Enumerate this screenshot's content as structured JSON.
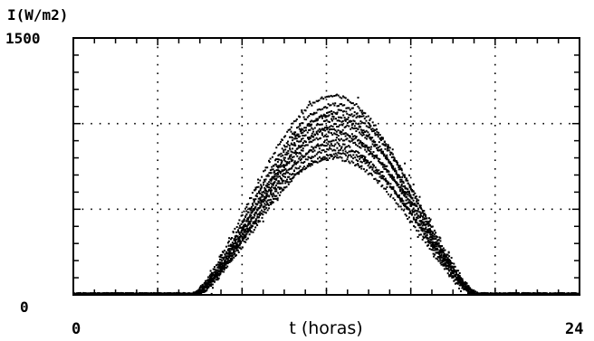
{
  "chart_data": {
    "type": "scatter",
    "title": "",
    "ylabel": "I(W/m2)",
    "xlabel": "t (horas)",
    "xlim": [
      0,
      24
    ],
    "ylim": [
      0,
      1500
    ],
    "x_tick_labels": [
      "0",
      "24"
    ],
    "y_tick_labels": [
      "1500",
      "0"
    ],
    "grid": "dotted",
    "grid_x": [
      4,
      8,
      12,
      16,
      20
    ],
    "grid_y": [
      500,
      1000
    ],
    "curve_peaks": [
      1160,
      1110,
      1070,
      1050,
      1020,
      990,
      960,
      940,
      910,
      880,
      850,
      820,
      800
    ],
    "sunrise_hour": 6.0,
    "sunset_hour": 18.6,
    "peak_hour": 12.4,
    "point_color": "#000000"
  }
}
